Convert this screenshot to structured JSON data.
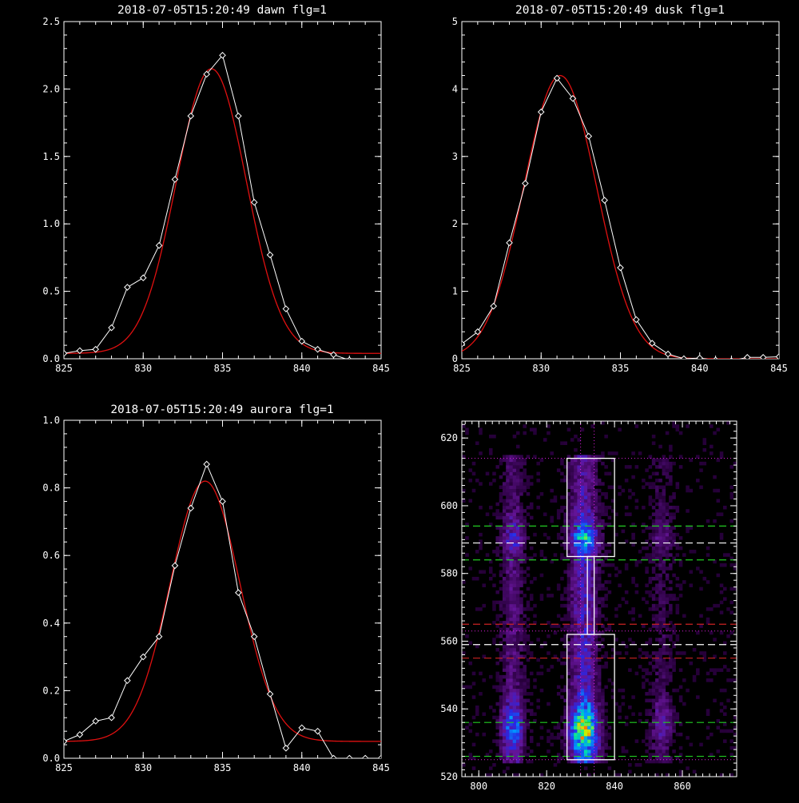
{
  "colors": {
    "background": "#000000",
    "axes": "#ffffff",
    "data_line": "#ffffff",
    "fit_line": "#e01010",
    "line_green": "#22cc22",
    "line_white": "#ffffff",
    "line_red": "#cc2222",
    "line_magenta": "#e020e0",
    "box_white": "#ffffff"
  },
  "chart_data": [
    {
      "id": "dawn",
      "type": "line",
      "title": "2018-07-05T15:20:49 dawn flg=1",
      "xlim": [
        825,
        845
      ],
      "ylim": [
        0,
        2.5
      ],
      "xticks": [
        825,
        830,
        835,
        840,
        845
      ],
      "xtick_labels": [
        "825",
        "830",
        "835",
        "840",
        "845"
      ],
      "yticks": [
        0,
        0.5,
        1.0,
        1.5,
        2.0,
        2.5
      ],
      "ytick_labels": [
        "0.0",
        "0.5",
        "1.0",
        "1.5",
        "2.0",
        "2.5"
      ],
      "series": [
        {
          "x": [
            825,
            826,
            827,
            828,
            829,
            830,
            831,
            832,
            833,
            834,
            835,
            836,
            837,
            838,
            839,
            840,
            841,
            842,
            843,
            844
          ],
          "y": [
            0.04,
            0.06,
            0.07,
            0.23,
            0.53,
            0.6,
            0.84,
            1.33,
            1.8,
            2.11,
            2.25,
            1.8,
            1.16,
            0.77,
            0.37,
            0.13,
            0.07,
            0.03,
            -0.01,
            -0.04
          ],
          "markers": "diamond"
        }
      ],
      "fit": {
        "amplitude": 2.11,
        "center": 834.3,
        "sigma": 2.2,
        "offset": 0.04
      }
    },
    {
      "id": "dusk",
      "type": "line",
      "title": "2018-07-05T15:20:49 dusk flg=1",
      "xlim": [
        825,
        845
      ],
      "ylim": [
        0,
        5
      ],
      "xticks": [
        825,
        830,
        835,
        840,
        845
      ],
      "xtick_labels": [
        "825",
        "830",
        "835",
        "840",
        "845"
      ],
      "yticks": [
        0,
        1,
        2,
        3,
        4,
        5
      ],
      "ytick_labels": [
        "0",
        "1",
        "2",
        "3",
        "4",
        "5"
      ],
      "series": [
        {
          "x": [
            825,
            826,
            827,
            828,
            829,
            830,
            831,
            832,
            833,
            834,
            835,
            836,
            837,
            838,
            839,
            840,
            841,
            842,
            843,
            844,
            845
          ],
          "y": [
            0.22,
            0.4,
            0.78,
            1.72,
            2.6,
            3.66,
            4.16,
            3.86,
            3.3,
            2.35,
            1.35,
            0.58,
            0.23,
            0.07,
            0.0,
            0.01,
            -0.02,
            -0.03,
            0.02,
            0.02,
            0.03
          ],
          "markers": "diamond"
        }
      ],
      "fit": {
        "amplitude": 4.2,
        "center": 831.2,
        "sigma": 2.3,
        "offset": 0.0
      }
    },
    {
      "id": "aurora",
      "type": "line",
      "title": "2018-07-05T15:20:49 aurora flg=1",
      "xlim": [
        825,
        845
      ],
      "ylim": [
        0,
        1.0
      ],
      "xticks": [
        825,
        830,
        835,
        840,
        845
      ],
      "xtick_labels": [
        "825",
        "830",
        "835",
        "840",
        "845"
      ],
      "yticks": [
        0,
        0.2,
        0.4,
        0.6,
        0.8,
        1.0
      ],
      "ytick_labels": [
        "0.0",
        "0.2",
        "0.4",
        "0.6",
        "0.8",
        "1.0"
      ],
      "series": [
        {
          "x": [
            825,
            826,
            827,
            828,
            829,
            830,
            831,
            832,
            833,
            834,
            835,
            836,
            837,
            838,
            839,
            840,
            841,
            842,
            843,
            844,
            845
          ],
          "y": [
            0.05,
            0.07,
            0.11,
            0.12,
            0.23,
            0.3,
            0.36,
            0.57,
            0.74,
            0.87,
            0.76,
            0.49,
            0.36,
            0.19,
            0.03,
            0.09,
            0.08,
            0.0,
            0.0,
            0.0,
            0.0
          ],
          "markers": "diamond"
        }
      ],
      "fit": {
        "amplitude": 0.77,
        "center": 833.9,
        "sigma": 2.2,
        "offset": 0.05
      }
    },
    {
      "id": "image",
      "type": "heatmap",
      "title": "",
      "xlim": [
        795,
        876
      ],
      "ylim": [
        520,
        625
      ],
      "xticks": [
        800,
        820,
        840,
        860
      ],
      "xtick_labels": [
        "800",
        "820",
        "840",
        "860"
      ],
      "yticks": [
        520,
        540,
        560,
        580,
        600,
        620
      ],
      "ytick_labels": [
        "520",
        "540",
        "560",
        "580",
        "600",
        "620"
      ],
      "emission_columns": [
        {
          "x_center": 810,
          "width": 4,
          "peak_y": 534,
          "strength": 0.55
        },
        {
          "x_center": 831,
          "width": 5,
          "peak_y": 533,
          "strength": 1.0
        },
        {
          "x_center": 854,
          "width": 4,
          "peak_y": 535,
          "strength": 0.3
        }
      ],
      "hot_spots": [
        {
          "x": 831,
          "y": 533
        },
        {
          "x": 833,
          "y": 590
        },
        {
          "x": 810,
          "y": 590
        }
      ],
      "boxes": [
        {
          "x": [
            826,
            840
          ],
          "y": [
            525,
            562
          ]
        },
        {
          "x": [
            826,
            840
          ],
          "y": [
            585,
            614
          ]
        },
        {
          "x": [
            832,
            834
          ],
          "y": [
            562,
            585
          ]
        }
      ],
      "dotted_magenta_y": [
        525,
        563,
        614
      ],
      "dotted_magenta_x": [
        830,
        834
      ],
      "dashed_green_y": [
        526,
        536,
        584,
        594
      ],
      "dashed_white_y": [
        559,
        589
      ],
      "dashed_red_y": [
        555,
        565
      ]
    }
  ]
}
